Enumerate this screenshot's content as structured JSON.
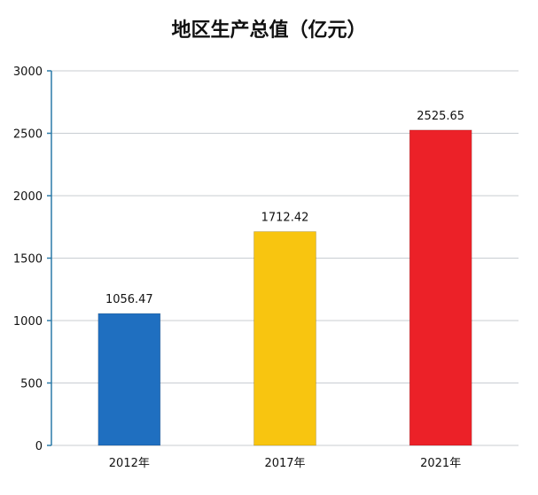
{
  "chart_data": {
    "type": "bar",
    "title": "地区生产总值（亿元）",
    "categories": [
      "2012年",
      "2017年",
      "2021年"
    ],
    "values": [
      1056.47,
      1712.42,
      2525.65
    ],
    "value_labels": [
      "1056.47",
      "1712.42",
      "2525.65"
    ],
    "colors": [
      "#1f6fc0",
      "#f8c510",
      "#ec2128"
    ],
    "xlabel": "",
    "ylabel": "",
    "ylim": [
      0,
      3000
    ],
    "yticks": [
      0,
      500,
      1000,
      1500,
      2000,
      2500,
      3000
    ],
    "grid": true
  }
}
